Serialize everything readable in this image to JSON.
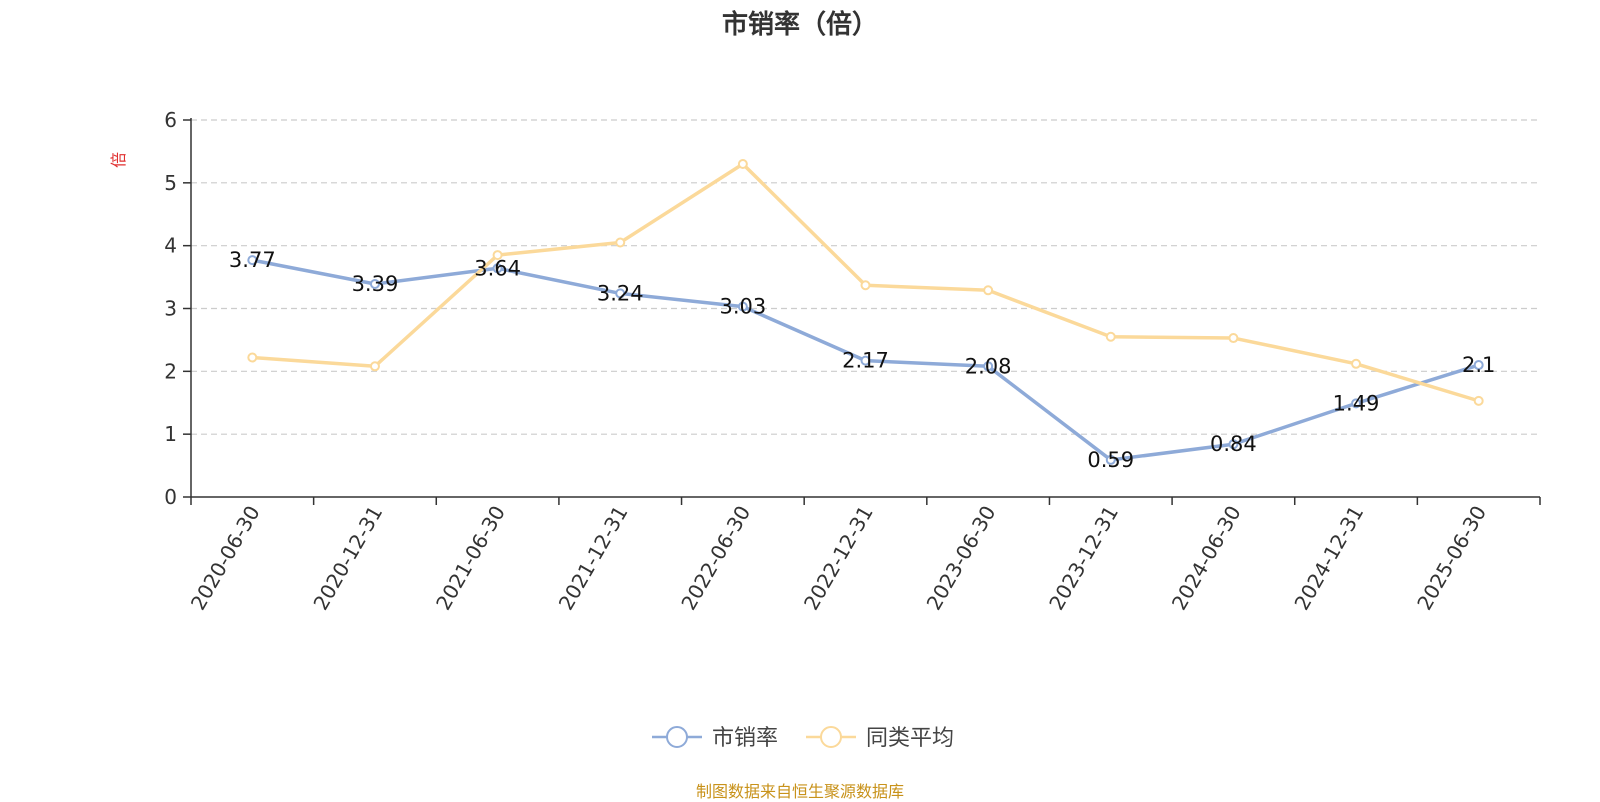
{
  "chart_data": {
    "type": "line",
    "title": "市销率（倍）",
    "ylabel": "倍",
    "xlabel": "",
    "categories": [
      "2020-06-30",
      "2020-12-31",
      "2021-06-30",
      "2021-12-31",
      "2022-06-30",
      "2022-12-31",
      "2023-06-30",
      "2023-12-31",
      "2024-06-30",
      "2024-12-31",
      "2025-06-30"
    ],
    "ylim": [
      0,
      6
    ],
    "yticks": [
      0,
      1,
      2,
      3,
      4,
      5,
      6
    ],
    "grid": true,
    "legend_position": "bottom",
    "series": [
      {
        "name": "市销率",
        "color": "#8eaad8",
        "values": [
          3.77,
          3.39,
          3.64,
          3.24,
          3.03,
          2.17,
          2.08,
          0.59,
          0.84,
          1.49,
          2.1
        ],
        "labels": [
          "3.77",
          "3.39",
          "3.64",
          "3.24",
          "3.03",
          "2.17",
          "2.08",
          "0.59",
          "0.84",
          "1.49",
          "2.1"
        ]
      },
      {
        "name": "同类平均",
        "color": "#fbd99a",
        "values": [
          2.22,
          2.08,
          3.85,
          4.05,
          5.3,
          3.37,
          3.29,
          2.55,
          2.53,
          2.12,
          1.53
        ]
      }
    ],
    "ylabel_color": "#e03030"
  },
  "source_note": "制图数据来自恒生聚源数据库"
}
